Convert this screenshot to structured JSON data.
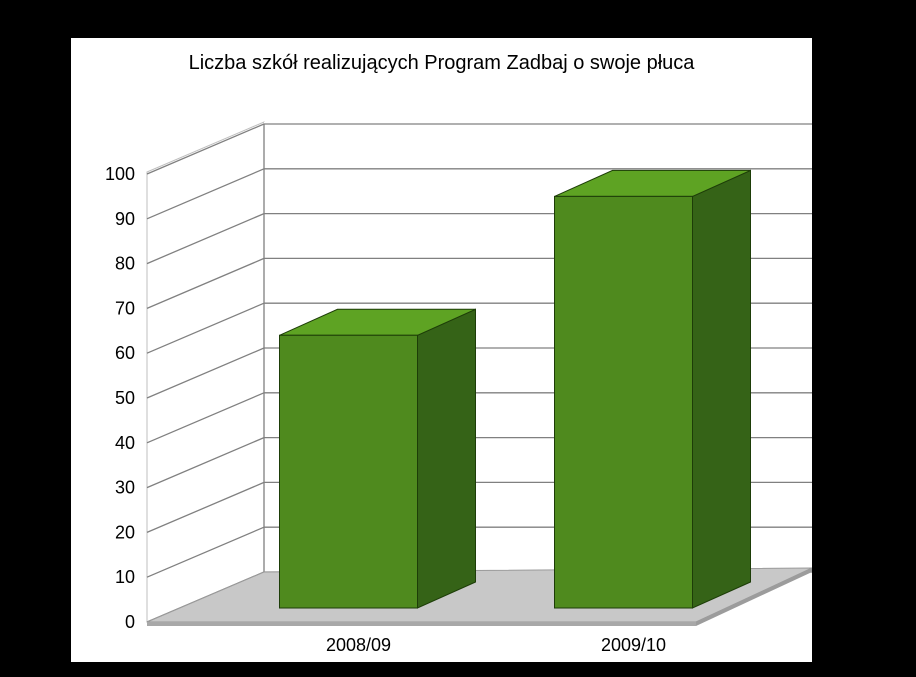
{
  "chart_data": {
    "type": "bar",
    "title": "Liczba szkół realizujących Program Zadbaj o swoje płuca",
    "categories": [
      "2008/09",
      "2009/10"
    ],
    "values": [
      64,
      95
    ],
    "ylim": [
      0,
      100
    ],
    "yticks": [
      0,
      10,
      20,
      30,
      40,
      50,
      60,
      70,
      80,
      90,
      100
    ],
    "xlabel": "",
    "ylabel": "",
    "grid": true,
    "legend": "none",
    "style": "3d",
    "colors": {
      "bar_front": "#4f8a1e",
      "bar_top": "#5ea323",
      "bar_side": "#356317",
      "bar_edge": "#1d3d08",
      "floor": "#c8c8c8",
      "grid": "#808080",
      "wall": "#ffffff"
    }
  }
}
